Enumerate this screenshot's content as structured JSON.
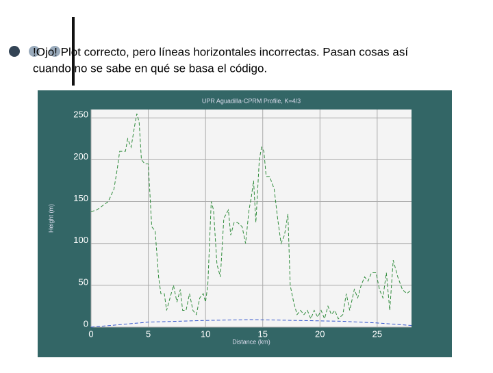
{
  "slide": {
    "lines": [
      "!Ojo! Plot correcto, pero líneas horizontales incorrectas. Pasan cosas así",
      "cuando no se sabe en qué se basa el código."
    ]
  },
  "chart_data": {
    "type": "line",
    "title": "UPR Aguadilla-CPRM Profile, K=4/3",
    "xlabel": "Distance (km)",
    "ylabel": "Height (m)",
    "xlim": [
      0,
      28
    ],
    "ylim": [
      0,
      260
    ],
    "xticks": [
      0,
      5,
      10,
      15,
      20,
      25
    ],
    "yticks": [
      0,
      50,
      100,
      150,
      200,
      250
    ],
    "grid": true,
    "series": [
      {
        "color": "#2e8b3a",
        "dashed": true,
        "x": [
          0,
          0.5,
          1,
          1.5,
          2,
          2.3,
          2.5,
          3,
          3.2,
          3.5,
          3.8,
          4,
          4.2,
          4.4,
          4.7,
          5,
          5.3,
          5.6,
          5.9,
          6.1,
          6.4,
          6.6,
          6.9,
          7.2,
          7.5,
          7.8,
          8,
          8.3,
          8.6,
          8.9,
          9.2,
          9.5,
          9.8,
          10,
          10.2,
          10.5,
          10.7,
          11,
          11.3,
          11.6,
          12,
          12.2,
          12.5,
          12.8,
          13.2,
          13.5,
          13.8,
          14,
          14.2,
          14.4,
          14.7,
          14.9,
          15.1,
          15.3,
          15.6,
          16,
          16.3,
          16.6,
          16.9,
          17.2,
          17.4,
          17.7,
          18,
          18.3,
          18.6,
          18.9,
          19.2,
          19.5,
          19.8,
          20.1,
          20.4,
          20.7,
          21,
          21.3,
          21.6,
          22,
          22.3,
          22.6,
          23,
          23.3,
          23.6,
          23.9,
          24.2,
          24.5,
          24.9,
          25.2,
          25.5,
          25.8,
          26.1,
          26.4,
          26.8,
          27.2,
          27.6,
          28
        ],
        "values": [
          138,
          140,
          145,
          150,
          165,
          190,
          210,
          210,
          225,
          215,
          240,
          255,
          245,
          200,
          195,
          195,
          120,
          115,
          60,
          40,
          40,
          20,
          35,
          50,
          30,
          45,
          20,
          20,
          40,
          20,
          15,
          35,
          40,
          30,
          50,
          150,
          140,
          75,
          60,
          130,
          140,
          110,
          125,
          125,
          120,
          100,
          140,
          155,
          175,
          125,
          200,
          215,
          210,
          180,
          180,
          165,
          130,
          100,
          110,
          135,
          50,
          30,
          15,
          20,
          15,
          20,
          10,
          20,
          12,
          20,
          10,
          25,
          15,
          20,
          10,
          15,
          40,
          20,
          45,
          35,
          50,
          60,
          55,
          65,
          65,
          45,
          35,
          65,
          20,
          80,
          60,
          45,
          40,
          45
        ]
      },
      {
        "color": "#3355cc",
        "dashed": true,
        "x": [
          0,
          5,
          10,
          14,
          18,
          22,
          25,
          28
        ],
        "values": [
          0,
          6,
          8,
          9,
          8,
          7,
          5,
          2
        ]
      }
    ]
  }
}
